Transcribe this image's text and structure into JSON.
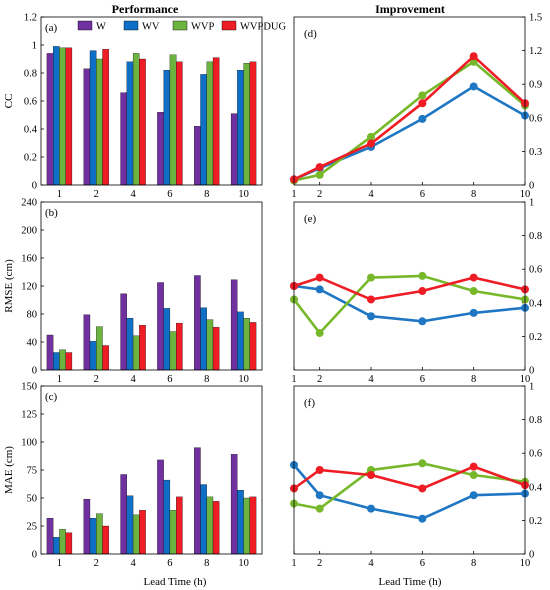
{
  "column_titles": {
    "left": "Performance",
    "right": "Improvement"
  },
  "colors": {
    "W": "#7030a0",
    "WV": "#0f6fc6",
    "WVP": "#6db33f",
    "WVPDUG": "#ee1c25",
    "improve_WV": "#1f77c4",
    "improve_WVP": "#77b82a",
    "improve_WVPDUG": "#ee1c25"
  },
  "legend": [
    "W",
    "WV",
    "WVP",
    "WVPDUG"
  ],
  "xlabel": "Lead Time (h)",
  "chart_data": [
    {
      "id": "a",
      "panel_label": "(a)",
      "type": "bar",
      "categories": [
        "1",
        "2",
        "4",
        "6",
        "8",
        "10"
      ],
      "ylabel": "CC",
      "ylim": [
        0,
        1.2
      ],
      "yticks": [
        "0",
        "0.2",
        "0.4",
        "0.6",
        "0.8",
        "1",
        "1.2"
      ],
      "series": [
        {
          "name": "W",
          "values": [
            0.94,
            0.83,
            0.66,
            0.52,
            0.42,
            0.51
          ]
        },
        {
          "name": "WV",
          "values": [
            0.99,
            0.96,
            0.88,
            0.82,
            0.79,
            0.82
          ]
        },
        {
          "name": "WVP",
          "values": [
            0.98,
            0.9,
            0.94,
            0.93,
            0.88,
            0.87
          ]
        },
        {
          "name": "WVPDUG",
          "values": [
            0.98,
            0.97,
            0.9,
            0.88,
            0.91,
            0.88
          ]
        }
      ]
    },
    {
      "id": "b",
      "panel_label": "(b)",
      "type": "bar",
      "categories": [
        "1",
        "2",
        "4",
        "6",
        "8",
        "10"
      ],
      "ylabel": "RMSE (cm)",
      "ylim": [
        0,
        240
      ],
      "yticks": [
        "0",
        "40",
        "80",
        "120",
        "160",
        "200",
        "240"
      ],
      "series": [
        {
          "name": "W",
          "values": [
            50,
            79,
            109,
            125,
            135,
            129
          ]
        },
        {
          "name": "WV",
          "values": [
            25,
            41,
            74,
            88,
            89,
            83
          ]
        },
        {
          "name": "WVP",
          "values": [
            29,
            62,
            49,
            55,
            72,
            74
          ]
        },
        {
          "name": "WVPDUG",
          "values": [
            25,
            35,
            64,
            67,
            61,
            68
          ]
        }
      ]
    },
    {
      "id": "c",
      "panel_label": "(c)",
      "type": "bar",
      "categories": [
        "1",
        "2",
        "4",
        "6",
        "8",
        "10"
      ],
      "ylabel": "MAE (cm)",
      "ylim": [
        0,
        150
      ],
      "yticks": [
        "0",
        "25",
        "50",
        "75",
        "100",
        "125",
        "150"
      ],
      "series": [
        {
          "name": "W",
          "values": [
            32,
            49,
            71,
            84,
            95,
            89
          ]
        },
        {
          "name": "WV",
          "values": [
            15,
            32,
            52,
            66,
            62,
            57
          ]
        },
        {
          "name": "WVP",
          "values": [
            22,
            36,
            35,
            39,
            51,
            50
          ]
        },
        {
          "name": "WVPDUG",
          "values": [
            19,
            25,
            39,
            51,
            47,
            51
          ]
        }
      ]
    },
    {
      "id": "d",
      "panel_label": "(d)",
      "type": "line",
      "x": [
        1,
        2,
        4,
        6,
        8,
        10
      ],
      "xlim": [
        1,
        10
      ],
      "xticks": [
        "1",
        "2",
        "4",
        "6",
        "8",
        "10"
      ],
      "ylim": [
        0,
        1.5
      ],
      "yticks": [
        "0",
        "0.3",
        "0.6",
        "0.9",
        "1.2",
        "1.5"
      ],
      "series": [
        {
          "key": "WV",
          "values": [
            0.05,
            0.15,
            0.34,
            0.59,
            0.88,
            0.62
          ]
        },
        {
          "key": "WVP",
          "values": [
            0.04,
            0.09,
            0.43,
            0.8,
            1.1,
            0.71
          ]
        },
        {
          "key": "WVPDUG",
          "values": [
            0.05,
            0.16,
            0.37,
            0.73,
            1.15,
            0.73
          ]
        }
      ]
    },
    {
      "id": "e",
      "panel_label": "(e)",
      "type": "line",
      "x": [
        1,
        2,
        4,
        6,
        8,
        10
      ],
      "xlim": [
        1,
        10
      ],
      "xticks": [
        "1",
        "2",
        "4",
        "6",
        "8",
        "10"
      ],
      "ylim": [
        0,
        1
      ],
      "yticks": [
        "0",
        "0.2",
        "0.4",
        "0.6",
        "0.8",
        "1"
      ],
      "series": [
        {
          "key": "WV",
          "values": [
            0.5,
            0.48,
            0.32,
            0.29,
            0.34,
            0.37
          ]
        },
        {
          "key": "WVP",
          "values": [
            0.42,
            0.22,
            0.55,
            0.56,
            0.47,
            0.42
          ]
        },
        {
          "key": "WVPDUG",
          "values": [
            0.5,
            0.55,
            0.42,
            0.47,
            0.55,
            0.48
          ]
        }
      ]
    },
    {
      "id": "f",
      "panel_label": "(f)",
      "type": "line",
      "x": [
        1,
        2,
        4,
        6,
        8,
        10
      ],
      "xlim": [
        1,
        10
      ],
      "xticks": [
        "1",
        "2",
        "4",
        "6",
        "8",
        "10"
      ],
      "ylim": [
        0,
        1
      ],
      "yticks": [
        "0",
        "0.2",
        "0.4",
        "0.6",
        "0.8",
        "1"
      ],
      "series": [
        {
          "key": "WV",
          "values": [
            0.53,
            0.35,
            0.27,
            0.21,
            0.35,
            0.36
          ]
        },
        {
          "key": "WVP",
          "values": [
            0.3,
            0.27,
            0.5,
            0.54,
            0.47,
            0.43
          ]
        },
        {
          "key": "WVPDUG",
          "values": [
            0.39,
            0.5,
            0.47,
            0.39,
            0.52,
            0.41
          ]
        }
      ]
    }
  ]
}
